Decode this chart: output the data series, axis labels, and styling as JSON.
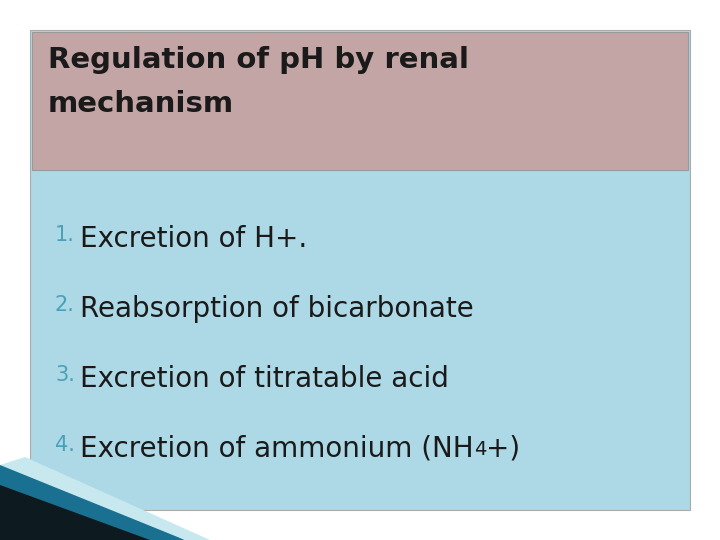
{
  "title_line1": "Regulation of pH by renal",
  "title_line2": "mechanism",
  "title_bg_color": "#c4a5a5",
  "title_text_color": "#1a1a1a",
  "body_bg_color": "#add8e6",
  "slide_bg_color": "#ffffff",
  "items": [
    {
      "num": "1.",
      "text": "Excretion of H+."
    },
    {
      "num": "2.",
      "text": "Reabsorption of bicarbonate"
    },
    {
      "num": "3.",
      "text": "Excretion of titratable acid"
    },
    {
      "num": "4.",
      "text_main": "Excretion of ammonium (NH",
      "text_sub": "4",
      "text_end": "+)"
    }
  ],
  "num_color": "#4aa0b8",
  "text_color": "#1a1a1a",
  "title_fontsize": 21,
  "item_fontsize": 20,
  "num_fontsize": 15,
  "fig_width": 7.2,
  "fig_height": 5.4,
  "dpi": 100
}
